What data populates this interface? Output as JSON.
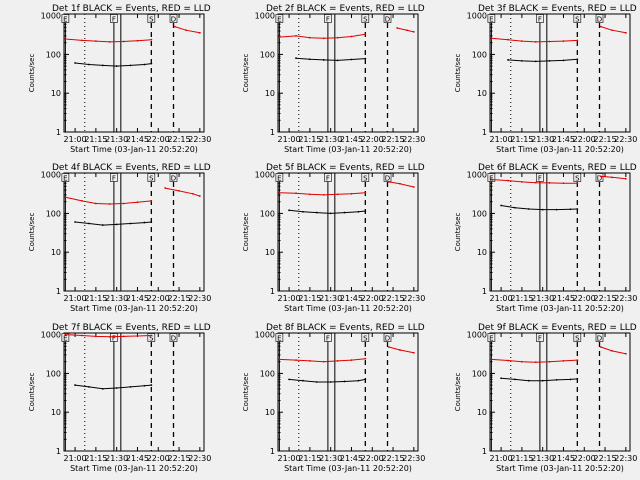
{
  "figure": {
    "background": "#f0f0f0",
    "events_color": "#000000",
    "lld_color": "#e00000",
    "xaxis_label": "Start Time (03-Jan-11 20:52:20)",
    "yaxis_label": "Counts/sec",
    "x_ticks": [
      "21:00",
      "21:15",
      "21:30",
      "21:45",
      "22:00",
      "22:15",
      "22:30"
    ],
    "y_ticks": [
      "1",
      "10",
      "100",
      "1000"
    ]
  },
  "chart_data": [
    {
      "type": "line",
      "title": "Det 1f BLACK = Events, RED = LLD",
      "xlabel": "Start Time (03-Jan-11 20:52:20)",
      "ylabel": "Counts/sec",
      "yscale": "log",
      "xlim": [
        "20:52",
        "22:33"
      ],
      "ylim": [
        1,
        1100
      ],
      "markers": [
        {
          "label": "E",
          "time": "20:53",
          "style": "solid"
        },
        {
          "label": "",
          "time": "21:07",
          "style": "dotted"
        },
        {
          "label": "F",
          "time": "21:28",
          "style": "solid"
        },
        {
          "label": "",
          "time": "21:33",
          "style": "solid"
        },
        {
          "label": "S",
          "time": "21:55",
          "style": "dashed"
        },
        {
          "label": "D",
          "time": "22:11",
          "style": "dashed"
        }
      ],
      "series": [
        {
          "name": "Events",
          "segments": [
            {
              "x": [
                "21:00",
                "21:10",
                "21:20",
                "21:30",
                "21:40",
                "21:50",
                "21:55"
              ],
              "y": [
                60,
                55,
                52,
                50,
                52,
                55,
                58
              ]
            }
          ]
        },
        {
          "name": "LLD",
          "segments": [
            {
              "x": [
                "20:53",
                "21:05",
                "21:15",
                "21:25",
                "21:35",
                "21:45",
                "21:55"
              ],
              "y": [
                250,
                230,
                220,
                210,
                215,
                225,
                240
              ]
            },
            {
              "x": [
                "22:12",
                "22:20",
                "22:30"
              ],
              "y": [
                520,
                420,
                360
              ]
            }
          ]
        }
      ]
    },
    {
      "type": "line",
      "title": "Det 2f BLACK = Events, RED = LLD",
      "xlabel": "Start Time (03-Jan-11 20:52:20)",
      "ylabel": "Counts/sec",
      "yscale": "log",
      "xlim": [
        "20:52",
        "22:33"
      ],
      "ylim": [
        1,
        1100
      ],
      "markers": [
        {
          "label": "E",
          "time": "20:53",
          "style": "solid"
        },
        {
          "label": "",
          "time": "21:07",
          "style": "dotted"
        },
        {
          "label": "F",
          "time": "21:28",
          "style": "solid"
        },
        {
          "label": "",
          "time": "21:33",
          "style": "solid"
        },
        {
          "label": "S",
          "time": "21:55",
          "style": "dashed"
        },
        {
          "label": "D",
          "time": "22:11",
          "style": "dashed"
        }
      ],
      "series": [
        {
          "name": "Events",
          "segments": [
            {
              "x": [
                "21:05",
                "21:15",
                "21:25",
                "21:35",
                "21:45",
                "21:55"
              ],
              "y": [
                80,
                75,
                72,
                70,
                74,
                78
              ]
            }
          ]
        },
        {
          "name": "LLD",
          "segments": [
            {
              "x": [
                "20:53",
                "21:05",
                "21:15",
                "21:25",
                "21:35",
                "21:45",
                "21:55"
              ],
              "y": [
                280,
                300,
                270,
                260,
                270,
                290,
                330
              ]
            },
            {
              "x": [
                "22:18",
                "22:25",
                "22:30"
              ],
              "y": [
                480,
                420,
                380
              ]
            }
          ]
        }
      ]
    },
    {
      "type": "line",
      "title": "Det 3f BLACK = Events, RED = LLD",
      "xlabel": "Start Time (03-Jan-11 20:52:20)",
      "ylabel": "Counts/sec",
      "yscale": "log",
      "xlim": [
        "20:52",
        "22:33"
      ],
      "ylim": [
        1,
        1100
      ],
      "markers": [
        {
          "label": "E",
          "time": "20:53",
          "style": "solid"
        },
        {
          "label": "",
          "time": "21:07",
          "style": "dotted"
        },
        {
          "label": "F",
          "time": "21:28",
          "style": "solid"
        },
        {
          "label": "",
          "time": "21:33",
          "style": "solid"
        },
        {
          "label": "S",
          "time": "21:55",
          "style": "dashed"
        },
        {
          "label": "D",
          "time": "22:11",
          "style": "dashed"
        }
      ],
      "series": [
        {
          "name": "Events",
          "segments": [
            {
              "x": [
                "21:05",
                "21:15",
                "21:25",
                "21:35",
                "21:45",
                "21:55"
              ],
              "y": [
                72,
                68,
                66,
                68,
                70,
                75
              ]
            }
          ]
        },
        {
          "name": "LLD",
          "segments": [
            {
              "x": [
                "20:53",
                "21:05",
                "21:15",
                "21:25",
                "21:35",
                "21:45",
                "21:55"
              ],
              "y": [
                260,
                240,
                220,
                210,
                215,
                220,
                230
              ]
            },
            {
              "x": [
                "22:12",
                "22:20",
                "22:30"
              ],
              "y": [
                520,
                420,
                360
              ]
            }
          ]
        }
      ]
    },
    {
      "type": "line",
      "title": "Det 4f BLACK = Events, RED = LLD",
      "xlabel": "Start Time (03-Jan-11 20:52:20)",
      "ylabel": "Counts/sec",
      "yscale": "log",
      "xlim": [
        "20:52",
        "22:33"
      ],
      "ylim": [
        1,
        1100
      ],
      "markers": [
        {
          "label": "E",
          "time": "20:53",
          "style": "solid"
        },
        {
          "label": "",
          "time": "21:07",
          "style": "dotted"
        },
        {
          "label": "F",
          "time": "21:28",
          "style": "solid"
        },
        {
          "label": "",
          "time": "21:33",
          "style": "solid"
        },
        {
          "label": "S",
          "time": "21:55",
          "style": "dashed"
        },
        {
          "label": "D",
          "time": "22:11",
          "style": "dashed"
        }
      ],
      "series": [
        {
          "name": "Events",
          "segments": [
            {
              "x": [
                "21:00",
                "21:10",
                "21:20",
                "21:30",
                "21:40",
                "21:50",
                "21:55"
              ],
              "y": [
                60,
                55,
                50,
                52,
                55,
                58,
                60
              ]
            }
          ]
        },
        {
          "name": "LLD",
          "segments": [
            {
              "x": [
                "20:53",
                "21:05",
                "21:15",
                "21:25",
                "21:35",
                "21:45",
                "21:55"
              ],
              "y": [
                260,
                210,
                180,
                175,
                180,
                195,
                210
              ]
            },
            {
              "x": [
                "22:05",
                "22:15",
                "22:25",
                "22:30"
              ],
              "y": [
                450,
                380,
                320,
                280
              ]
            }
          ]
        }
      ]
    },
    {
      "type": "line",
      "title": "Det 5f BLACK = Events, RED = LLD",
      "xlabel": "Start Time (03-Jan-11 20:52:20)",
      "ylabel": "Counts/sec",
      "yscale": "log",
      "xlim": [
        "20:52",
        "22:33"
      ],
      "ylim": [
        1,
        1100
      ],
      "markers": [
        {
          "label": "E",
          "time": "20:53",
          "style": "solid"
        },
        {
          "label": "",
          "time": "21:07",
          "style": "dotted"
        },
        {
          "label": "F",
          "time": "21:28",
          "style": "solid"
        },
        {
          "label": "",
          "time": "21:33",
          "style": "solid"
        },
        {
          "label": "S",
          "time": "21:55",
          "style": "dashed"
        },
        {
          "label": "D",
          "time": "22:11",
          "style": "dashed"
        }
      ],
      "series": [
        {
          "name": "Events",
          "segments": [
            {
              "x": [
                "21:00",
                "21:10",
                "21:20",
                "21:30",
                "21:40",
                "21:50",
                "21:55"
              ],
              "y": [
                120,
                110,
                105,
                100,
                105,
                110,
                115
              ]
            }
          ]
        },
        {
          "name": "LLD",
          "segments": [
            {
              "x": [
                "20:53",
                "21:05",
                "21:15",
                "21:25",
                "21:35",
                "21:45",
                "21:55"
              ],
              "y": [
                340,
                330,
                310,
                300,
                310,
                320,
                340
              ]
            },
            {
              "x": [
                "22:12",
                "22:20",
                "22:30"
              ],
              "y": [
                650,
                580,
                480
              ]
            }
          ]
        }
      ]
    },
    {
      "type": "line",
      "title": "Det 6f BLACK = Events, RED = LLD",
      "xlabel": "Start Time (03-Jan-11 20:52:20)",
      "ylabel": "Counts/sec",
      "yscale": "log",
      "xlim": [
        "20:52",
        "22:33"
      ],
      "ylim": [
        1,
        1100
      ],
      "markers": [
        {
          "label": "E",
          "time": "20:53",
          "style": "solid"
        },
        {
          "label": "",
          "time": "21:07",
          "style": "dotted"
        },
        {
          "label": "F",
          "time": "21:28",
          "style": "solid"
        },
        {
          "label": "",
          "time": "21:33",
          "style": "solid"
        },
        {
          "label": "S",
          "time": "21:55",
          "style": "dashed"
        },
        {
          "label": "D",
          "time": "22:11",
          "style": "dashed"
        }
      ],
      "series": [
        {
          "name": "Events",
          "segments": [
            {
              "x": [
                "21:00",
                "21:10",
                "21:20",
                "21:30",
                "21:40",
                "21:50",
                "21:55"
              ],
              "y": [
                160,
                140,
                130,
                125,
                125,
                128,
                130
              ]
            }
          ]
        },
        {
          "name": "LLD",
          "segments": [
            {
              "x": [
                "20:53",
                "21:05",
                "21:15",
                "21:25",
                "21:35",
                "21:45",
                "21:55"
              ],
              "y": [
                750,
                700,
                650,
                620,
                610,
                600,
                600
              ]
            },
            {
              "x": [
                "22:12",
                "22:20",
                "22:30"
              ],
              "y": [
                900,
                850,
                780
              ]
            }
          ]
        }
      ]
    },
    {
      "type": "line",
      "title": "Det 7f BLACK = Events, RED = LLD",
      "xlabel": "Start Time (03-Jan-11 20:52:20)",
      "ylabel": "Counts/sec",
      "yscale": "log",
      "xlim": [
        "20:52",
        "22:33"
      ],
      "ylim": [
        1,
        1100
      ],
      "markers": [
        {
          "label": "E",
          "time": "20:53",
          "style": "solid"
        },
        {
          "label": "",
          "time": "21:07",
          "style": "dotted"
        },
        {
          "label": "F",
          "time": "21:28",
          "style": "solid"
        },
        {
          "label": "",
          "time": "21:33",
          "style": "solid"
        },
        {
          "label": "S",
          "time": "21:55",
          "style": "dashed"
        },
        {
          "label": "D",
          "time": "22:11",
          "style": "dashed"
        }
      ],
      "series": [
        {
          "name": "Events",
          "segments": [
            {
              "x": [
                "21:00",
                "21:10",
                "21:20",
                "21:30",
                "21:40",
                "21:50",
                "21:55"
              ],
              "y": [
                50,
                45,
                40,
                42,
                45,
                48,
                50
              ]
            }
          ]
        },
        {
          "name": "LLD",
          "segments": [
            {
              "x": [
                "20:53",
                "21:05",
                "21:15",
                "21:25",
                "21:35",
                "21:45",
                "21:55"
              ],
              "y": [
                1000,
                950,
                900,
                880,
                900,
                920,
                950
              ]
            }
          ]
        }
      ]
    },
    {
      "type": "line",
      "title": "Det 8f BLACK = Events, RED = LLD",
      "xlabel": "Start Time (03-Jan-11 20:52:20)",
      "ylabel": "Counts/sec",
      "yscale": "log",
      "xlim": [
        "20:52",
        "22:33"
      ],
      "ylim": [
        1,
        1100
      ],
      "markers": [
        {
          "label": "E",
          "time": "20:53",
          "style": "solid"
        },
        {
          "label": "",
          "time": "21:07",
          "style": "dotted"
        },
        {
          "label": "F",
          "time": "21:28",
          "style": "solid"
        },
        {
          "label": "",
          "time": "21:33",
          "style": "solid"
        },
        {
          "label": "S",
          "time": "21:55",
          "style": "dashed"
        },
        {
          "label": "D",
          "time": "22:11",
          "style": "dashed"
        }
      ],
      "series": [
        {
          "name": "Events",
          "segments": [
            {
              "x": [
                "21:00",
                "21:10",
                "21:20",
                "21:30",
                "21:40",
                "21:50",
                "21:55"
              ],
              "y": [
                70,
                65,
                60,
                60,
                62,
                65,
                70
              ]
            }
          ]
        },
        {
          "name": "LLD",
          "segments": [
            {
              "x": [
                "20:53",
                "21:05",
                "21:15",
                "21:25",
                "21:35",
                "21:45",
                "21:55"
              ],
              "y": [
                230,
                220,
                210,
                200,
                210,
                220,
                240
              ]
            },
            {
              "x": [
                "22:12",
                "22:20",
                "22:30"
              ],
              "y": [
                480,
                400,
                340
              ]
            }
          ]
        }
      ]
    },
    {
      "type": "line",
      "title": "Det 9f BLACK = Events, RED = LLD",
      "xlabel": "Start Time (03-Jan-11 20:52:20)",
      "ylabel": "Counts/sec",
      "yscale": "log",
      "xlim": [
        "20:52",
        "22:33"
      ],
      "ylim": [
        1,
        1100
      ],
      "markers": [
        {
          "label": "E",
          "time": "20:53",
          "style": "solid"
        },
        {
          "label": "",
          "time": "21:07",
          "style": "dotted"
        },
        {
          "label": "F",
          "time": "21:28",
          "style": "solid"
        },
        {
          "label": "",
          "time": "21:33",
          "style": "solid"
        },
        {
          "label": "S",
          "time": "21:55",
          "style": "dashed"
        },
        {
          "label": "D",
          "time": "22:11",
          "style": "dashed"
        }
      ],
      "series": [
        {
          "name": "Events",
          "segments": [
            {
              "x": [
                "21:00",
                "21:10",
                "21:20",
                "21:30",
                "21:40",
                "21:50",
                "21:55"
              ],
              "y": [
                75,
                70,
                65,
                65,
                68,
                70,
                72
              ]
            }
          ]
        },
        {
          "name": "LLD",
          "segments": [
            {
              "x": [
                "20:53",
                "21:05",
                "21:15",
                "21:25",
                "21:35",
                "21:45",
                "21:55"
              ],
              "y": [
                230,
                215,
                200,
                195,
                200,
                210,
                220
              ]
            },
            {
              "x": [
                "22:12",
                "22:20",
                "22:30"
              ],
              "y": [
                480,
                380,
                320
              ]
            }
          ]
        }
      ]
    }
  ]
}
